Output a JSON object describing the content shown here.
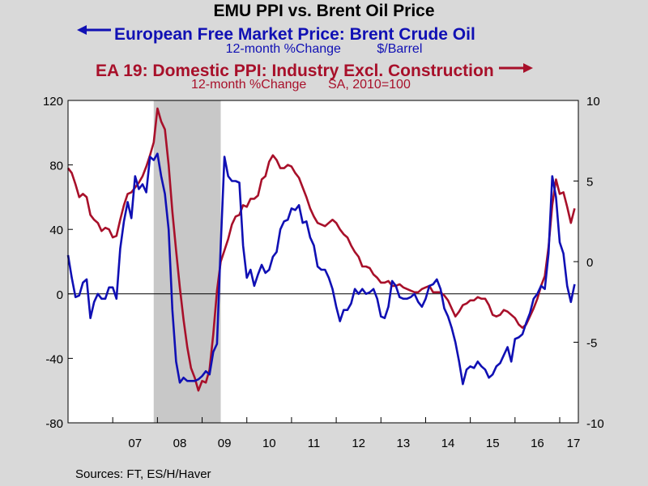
{
  "title": "EMU PPI vs. Brent Oil Price",
  "series1_label": "European Free Market Price: Brent Crude Oil",
  "series1_units": "12-month %Change          $/Barrel",
  "series2_label": "EA 19: Domestic PPI: Industry Excl. Construction",
  "series2_units": "12-month %Change      SA, 2010=100",
  "source": "Sources:  FT, ES/H/Haver",
  "colors": {
    "brent": "#1010b4",
    "ppi": "#a8102a",
    "recession": "#c8c8c8"
  },
  "chart_data": {
    "type": "line",
    "x_ticks": [
      "07",
      "08",
      "09",
      "10",
      "11",
      "12",
      "13",
      "14",
      "15",
      "16",
      "17"
    ],
    "left_axis": {
      "ylim": [
        -80,
        120
      ],
      "ticks": [
        -80,
        -40,
        0,
        40,
        80,
        120
      ]
    },
    "right_axis": {
      "ylim": [
        -10,
        10
      ],
      "ticks": [
        -10,
        -5,
        0,
        5,
        10
      ]
    },
    "shaded_period": [
      "2007-12",
      "2009-06"
    ],
    "series": [
      {
        "name": "European Free Market Price: Brent Crude Oil",
        "axis": "left",
        "points": [
          [
            "2006-01",
            24
          ],
          [
            "2006-02",
            10
          ],
          [
            "2006-03",
            -2
          ],
          [
            "2006-04",
            -1
          ],
          [
            "2006-05",
            7
          ],
          [
            "2006-06",
            9
          ],
          [
            "2006-07",
            -15
          ],
          [
            "2006-08",
            -5
          ],
          [
            "2006-09",
            0
          ],
          [
            "2006-10",
            -3
          ],
          [
            "2006-11",
            -3
          ],
          [
            "2006-12",
            4
          ],
          [
            "2007-01",
            4
          ],
          [
            "2007-02",
            -3
          ],
          [
            "2007-03",
            28
          ],
          [
            "2007-04",
            45
          ],
          [
            "2007-05",
            57
          ],
          [
            "2007-06",
            47
          ],
          [
            "2007-07",
            73
          ],
          [
            "2007-08",
            65
          ],
          [
            "2007-09",
            68
          ],
          [
            "2007-10",
            63
          ],
          [
            "2007-11",
            85
          ],
          [
            "2007-12",
            83
          ],
          [
            "2008-01",
            87
          ],
          [
            "2008-02",
            73
          ],
          [
            "2008-03",
            62
          ],
          [
            "2008-04",
            40
          ],
          [
            "2008-05",
            -10
          ],
          [
            "2008-06",
            -42
          ],
          [
            "2008-07",
            -55
          ],
          [
            "2008-08",
            -52
          ],
          [
            "2008-09",
            -54
          ],
          [
            "2008-10",
            -54
          ],
          [
            "2008-11",
            -54
          ],
          [
            "2008-12",
            -53
          ],
          [
            "2009-01",
            -51
          ],
          [
            "2009-02",
            -48
          ],
          [
            "2009-03",
            -50
          ],
          [
            "2009-04",
            -36
          ],
          [
            "2009-05",
            -31
          ],
          [
            "2009-06",
            30
          ],
          [
            "2009-07",
            85
          ],
          [
            "2009-08",
            73
          ],
          [
            "2009-09",
            70
          ],
          [
            "2009-10",
            70
          ],
          [
            "2009-11",
            69
          ],
          [
            "2009-12",
            30
          ],
          [
            "2010-01",
            10
          ],
          [
            "2010-02",
            15
          ],
          [
            "2010-03",
            5
          ],
          [
            "2010-04",
            12
          ],
          [
            "2010-05",
            18
          ],
          [
            "2010-06",
            13
          ],
          [
            "2010-07",
            15
          ],
          [
            "2010-08",
            23
          ],
          [
            "2010-09",
            26
          ],
          [
            "2010-10",
            40
          ],
          [
            "2010-11",
            45
          ],
          [
            "2010-12",
            46
          ],
          [
            "2011-01",
            53
          ],
          [
            "2011-02",
            52
          ],
          [
            "2011-03",
            55
          ],
          [
            "2011-04",
            44
          ],
          [
            "2011-05",
            45
          ],
          [
            "2011-06",
            35
          ],
          [
            "2011-07",
            30
          ],
          [
            "2011-08",
            17
          ],
          [
            "2011-09",
            15
          ],
          [
            "2011-10",
            15
          ],
          [
            "2011-11",
            10
          ],
          [
            "2011-12",
            3
          ],
          [
            "2012-01",
            -8
          ],
          [
            "2012-02",
            -17
          ],
          [
            "2012-03",
            -10
          ],
          [
            "2012-04",
            -10
          ],
          [
            "2012-05",
            -6
          ],
          [
            "2012-06",
            3
          ],
          [
            "2012-07",
            0
          ],
          [
            "2012-08",
            3
          ],
          [
            "2012-09",
            0
          ],
          [
            "2012-10",
            1
          ],
          [
            "2012-11",
            3
          ],
          [
            "2012-12",
            -3
          ],
          [
            "2013-01",
            -14
          ],
          [
            "2013-02",
            -15
          ],
          [
            "2013-03",
            -8
          ],
          [
            "2013-04",
            8
          ],
          [
            "2013-05",
            5
          ],
          [
            "2013-06",
            -2
          ],
          [
            "2013-07",
            -3
          ],
          [
            "2013-08",
            -3
          ],
          [
            "2013-09",
            -2
          ],
          [
            "2013-10",
            0
          ],
          [
            "2013-11",
            -5
          ],
          [
            "2013-12",
            -8
          ],
          [
            "2014-01",
            -3
          ],
          [
            "2014-02",
            5
          ],
          [
            "2014-03",
            6
          ],
          [
            "2014-04",
            9
          ],
          [
            "2014-05",
            3
          ],
          [
            "2014-06",
            -9
          ],
          [
            "2014-07",
            -14
          ],
          [
            "2014-08",
            -21
          ],
          [
            "2014-09",
            -30
          ],
          [
            "2014-10",
            -42
          ],
          [
            "2014-11",
            -56
          ],
          [
            "2014-12",
            -47
          ],
          [
            "2015-01",
            -45
          ],
          [
            "2015-02",
            -46
          ],
          [
            "2015-03",
            -42
          ],
          [
            "2015-04",
            -45
          ],
          [
            "2015-05",
            -47
          ],
          [
            "2015-06",
            -52
          ],
          [
            "2015-07",
            -50
          ],
          [
            "2015-08",
            -45
          ],
          [
            "2015-09",
            -43
          ],
          [
            "2015-10",
            -38
          ],
          [
            "2015-11",
            -33
          ],
          [
            "2015-12",
            -42
          ],
          [
            "2016-01",
            -28
          ],
          [
            "2016-02",
            -27
          ],
          [
            "2016-03",
            -25
          ],
          [
            "2016-04",
            -18
          ],
          [
            "2016-05",
            -12
          ],
          [
            "2016-06",
            -3
          ],
          [
            "2016-07",
            0
          ],
          [
            "2016-08",
            5
          ],
          [
            "2016-09",
            3
          ],
          [
            "2016-10",
            25
          ],
          [
            "2016-11",
            73
          ],
          [
            "2016-12",
            60
          ],
          [
            "2017-01",
            32
          ],
          [
            "2017-02",
            25
          ],
          [
            "2017-03",
            5
          ],
          [
            "2017-04",
            -5
          ],
          [
            "2017-05",
            6
          ]
        ]
      },
      {
        "name": "EA 19: Domestic PPI: Industry Excl. Construction",
        "axis": "right",
        "points": [
          [
            "2006-01",
            5.8
          ],
          [
            "2006-02",
            5.5
          ],
          [
            "2006-03",
            4.8
          ],
          [
            "2006-04",
            4.0
          ],
          [
            "2006-05",
            4.2
          ],
          [
            "2006-06",
            4.0
          ],
          [
            "2006-07",
            2.9
          ],
          [
            "2006-08",
            2.6
          ],
          [
            "2006-09",
            2.4
          ],
          [
            "2006-10",
            1.9
          ],
          [
            "2006-11",
            2.1
          ],
          [
            "2006-12",
            2.0
          ],
          [
            "2007-01",
            1.5
          ],
          [
            "2007-02",
            1.6
          ],
          [
            "2007-03",
            2.6
          ],
          [
            "2007-04",
            3.5
          ],
          [
            "2007-05",
            4.2
          ],
          [
            "2007-06",
            4.3
          ],
          [
            "2007-07",
            4.6
          ],
          [
            "2007-08",
            4.9
          ],
          [
            "2007-09",
            5.3
          ],
          [
            "2007-10",
            5.9
          ],
          [
            "2007-11",
            6.6
          ],
          [
            "2007-12",
            7.4
          ],
          [
            "2008-01",
            9.5
          ],
          [
            "2008-02",
            8.7
          ],
          [
            "2008-03",
            8.2
          ],
          [
            "2008-04",
            6.0
          ],
          [
            "2008-05",
            3.1
          ],
          [
            "2008-06",
            0.7
          ],
          [
            "2008-07",
            -1.6
          ],
          [
            "2008-08",
            -3.6
          ],
          [
            "2008-09",
            -5.3
          ],
          [
            "2008-10",
            -6.6
          ],
          [
            "2008-11",
            -7.2
          ],
          [
            "2008-12",
            -8.0
          ],
          [
            "2009-01",
            -7.4
          ],
          [
            "2009-02",
            -7.5
          ],
          [
            "2009-03",
            -6.7
          ],
          [
            "2009-04",
            -4.5
          ],
          [
            "2009-05",
            -1.8
          ],
          [
            "2009-06",
            0
          ],
          [
            "2009-07",
            0.7
          ],
          [
            "2009-08",
            1.4
          ],
          [
            "2009-09",
            2.3
          ],
          [
            "2009-10",
            2.8
          ],
          [
            "2009-11",
            2.9
          ],
          [
            "2009-12",
            3.5
          ],
          [
            "2010-01",
            3.4
          ],
          [
            "2010-02",
            3.9
          ],
          [
            "2010-03",
            3.9
          ],
          [
            "2010-04",
            4.1
          ],
          [
            "2010-05",
            5.1
          ],
          [
            "2010-06",
            5.3
          ],
          [
            "2010-07",
            6.2
          ],
          [
            "2010-08",
            6.6
          ],
          [
            "2010-09",
            6.3
          ],
          [
            "2010-10",
            5.8
          ],
          [
            "2010-11",
            5.8
          ],
          [
            "2010-12",
            6.0
          ],
          [
            "2011-01",
            5.9
          ],
          [
            "2011-02",
            5.5
          ],
          [
            "2011-03",
            5.2
          ],
          [
            "2011-04",
            4.6
          ],
          [
            "2011-05",
            4.0
          ],
          [
            "2011-06",
            3.3
          ],
          [
            "2011-07",
            2.8
          ],
          [
            "2011-08",
            2.4
          ],
          [
            "2011-09",
            2.3
          ],
          [
            "2011-10",
            2.2
          ],
          [
            "2011-11",
            2.4
          ],
          [
            "2011-12",
            2.6
          ],
          [
            "2012-01",
            2.4
          ],
          [
            "2012-02",
            2.0
          ],
          [
            "2012-03",
            1.7
          ],
          [
            "2012-04",
            1.5
          ],
          [
            "2012-05",
            1.0
          ],
          [
            "2012-06",
            0.6
          ],
          [
            "2012-07",
            0.3
          ],
          [
            "2012-08",
            -0.3
          ],
          [
            "2012-09",
            -0.3
          ],
          [
            "2012-10",
            -0.4
          ],
          [
            "2012-11",
            -0.8
          ],
          [
            "2012-12",
            -1.0
          ],
          [
            "2013-01",
            -1.3
          ],
          [
            "2013-02",
            -1.3
          ],
          [
            "2013-03",
            -1.2
          ],
          [
            "2013-04",
            -1.5
          ],
          [
            "2013-05",
            -1.5
          ],
          [
            "2013-06",
            -1.4
          ],
          [
            "2013-07",
            -1.6
          ],
          [
            "2013-08",
            -1.7
          ],
          [
            "2013-09",
            -1.8
          ],
          [
            "2013-10",
            -1.9
          ],
          [
            "2013-11",
            -1.9
          ],
          [
            "2013-12",
            -1.7
          ],
          [
            "2014-01",
            -1.6
          ],
          [
            "2014-02",
            -1.5
          ],
          [
            "2014-03",
            -1.9
          ],
          [
            "2014-04",
            -1.9
          ],
          [
            "2014-05",
            -1.9
          ],
          [
            "2014-06",
            -2.1
          ],
          [
            "2014-07",
            -2.4
          ],
          [
            "2014-08",
            -2.9
          ],
          [
            "2014-09",
            -3.4
          ],
          [
            "2014-10",
            -3.1
          ],
          [
            "2014-11",
            -2.7
          ],
          [
            "2014-12",
            -2.6
          ],
          [
            "2015-01",
            -2.4
          ],
          [
            "2015-02",
            -2.4
          ],
          [
            "2015-03",
            -2.2
          ],
          [
            "2015-04",
            -2.3
          ],
          [
            "2015-05",
            -2.3
          ],
          [
            "2015-06",
            -2.7
          ],
          [
            "2015-07",
            -3.3
          ],
          [
            "2015-08",
            -3.4
          ],
          [
            "2015-09",
            -3.3
          ],
          [
            "2015-10",
            -3.0
          ],
          [
            "2015-11",
            -3.1
          ],
          [
            "2015-12",
            -3.3
          ],
          [
            "2016-01",
            -3.5
          ],
          [
            "2016-02",
            -3.9
          ],
          [
            "2016-03",
            -4.1
          ],
          [
            "2016-04",
            -3.9
          ],
          [
            "2016-05",
            -3.4
          ],
          [
            "2016-06",
            -2.9
          ],
          [
            "2016-07",
            -2.3
          ],
          [
            "2016-08",
            -1.5
          ],
          [
            "2016-09",
            -0.9
          ],
          [
            "2016-10",
            0.9
          ],
          [
            "2016-11",
            3.5
          ],
          [
            "2016-12",
            5.1
          ],
          [
            "2017-01",
            4.2
          ],
          [
            "2017-02",
            4.3
          ],
          [
            "2017-03",
            3.4
          ],
          [
            "2017-04",
            2.4
          ],
          [
            "2017-05",
            3.3
          ]
        ]
      }
    ]
  }
}
